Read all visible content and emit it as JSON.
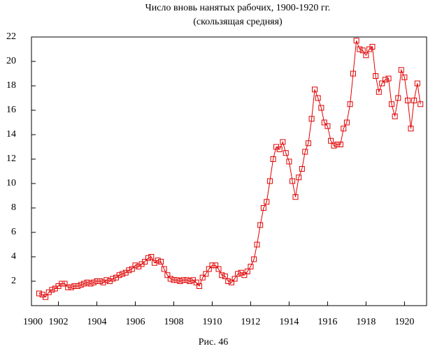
{
  "chart_data": {
    "type": "line",
    "title": "Число вновь нанятых рабочих, 1900-1920 гг.",
    "subtitle": "(скользящая средняя)",
    "caption": "Рис. 46",
    "color": "#e00000",
    "x": [
      1901,
      1901.17,
      1901.33,
      1901.5,
      1901.67,
      1901.83,
      1902,
      1902.17,
      1902.33,
      1902.5,
      1902.67,
      1902.83,
      1903,
      1903.17,
      1903.33,
      1903.5,
      1903.67,
      1903.83,
      1904,
      1904.17,
      1904.33,
      1904.5,
      1904.67,
      1904.83,
      1905,
      1905.17,
      1905.33,
      1905.5,
      1905.67,
      1905.83,
      1906,
      1906.17,
      1906.33,
      1906.5,
      1906.67,
      1906.83,
      1907,
      1907.17,
      1907.33,
      1907.5,
      1907.67,
      1907.83,
      1908,
      1908.17,
      1908.33,
      1908.5,
      1908.67,
      1908.83,
      1909,
      1909.17,
      1909.33,
      1909.5,
      1909.67,
      1909.83,
      1910,
      1910.17,
      1910.33,
      1910.5,
      1910.67,
      1910.83,
      1911,
      1911.17,
      1911.33,
      1911.5,
      1911.67,
      1911.83,
      1912,
      1912.17,
      1912.33,
      1912.5,
      1912.67,
      1912.83,
      1913,
      1913.17,
      1913.33,
      1913.5,
      1913.67,
      1913.83,
      1914,
      1914.17,
      1914.33,
      1914.5,
      1914.67,
      1914.83,
      1915,
      1915.17,
      1915.33,
      1915.5,
      1915.67,
      1915.83,
      1916,
      1916.17,
      1916.33,
      1916.5,
      1916.67,
      1916.83,
      1917,
      1917.17,
      1917.33,
      1917.5,
      1917.67,
      1917.83,
      1918,
      1918.17,
      1918.33,
      1918.5,
      1918.67,
      1918.83,
      1919,
      1919.17,
      1919.33,
      1919.5,
      1919.67,
      1919.83,
      1920,
      1920.17,
      1920.33,
      1920.5,
      1920.67,
      1920.83
    ],
    "values": [
      1.0,
      0.9,
      0.7,
      1.1,
      1.3,
      1.4,
      1.6,
      1.8,
      1.8,
      1.5,
      1.5,
      1.6,
      1.6,
      1.7,
      1.8,
      1.9,
      1.8,
      1.9,
      2.0,
      2.0,
      1.9,
      2.1,
      2.0,
      2.2,
      2.3,
      2.5,
      2.6,
      2.7,
      2.9,
      3.0,
      3.3,
      3.2,
      3.4,
      3.6,
      3.9,
      4.0,
      3.5,
      3.7,
      3.6,
      3.0,
      2.5,
      2.2,
      2.1,
      2.1,
      2.0,
      2.1,
      2.1,
      2.0,
      2.1,
      1.9,
      1.6,
      2.3,
      2.6,
      3.0,
      3.3,
      3.3,
      3.0,
      2.5,
      2.4,
      2.0,
      1.9,
      2.2,
      2.6,
      2.7,
      2.5,
      2.8,
      3.2,
      3.8,
      5.0,
      6.6,
      8.0,
      8.5,
      10.2,
      12.0,
      13.0,
      12.8,
      13.4,
      12.5,
      11.8,
      10.2,
      8.9,
      10.5,
      11.2,
      12.6,
      13.3,
      15.3,
      17.7,
      17.0,
      16.2,
      15.0,
      14.7,
      13.5,
      13.1,
      13.2,
      13.2,
      14.5,
      15.0,
      16.5,
      19.0,
      21.7,
      21.0,
      20.9,
      20.5,
      21.0,
      21.2,
      18.8,
      17.5,
      18.2,
      18.5,
      18.6,
      16.5,
      15.5,
      17.0,
      19.3,
      18.7,
      16.8,
      14.5,
      16.8,
      18.2,
      16.5
    ],
    "xlim": [
      1900.6,
      1921.15
    ],
    "xticks": [
      1900,
      1902,
      1904,
      1906,
      1908,
      1910,
      1912,
      1914,
      1916,
      1918,
      1920
    ],
    "ylim": [
      0,
      22
    ],
    "yticks": [
      2,
      4,
      6,
      8,
      10,
      12,
      14,
      16,
      18,
      20,
      22
    ]
  }
}
